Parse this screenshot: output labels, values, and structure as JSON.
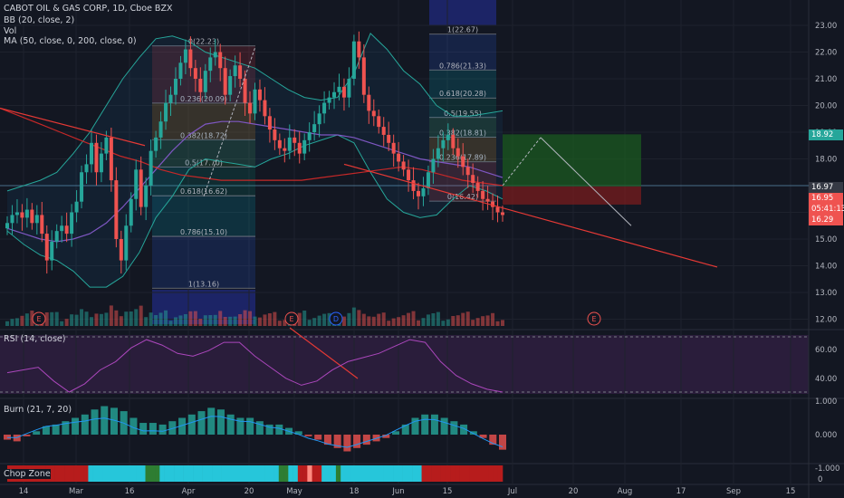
{
  "header": {
    "title": "CABOT OIL & GAS CORP, 1D, Cboe BZX",
    "indicators": [
      "BB (20, close, 2)",
      "Vol",
      "MA (50, close, 0, 200, close, 0)"
    ]
  },
  "rsi_label": "RSI (14, close)",
  "burn_label": "Burn (21, 7, 20)",
  "chop_label": "Chop Zone",
  "price_tags": [
    {
      "value": "18.92",
      "color": "#26a69a"
    },
    {
      "value": "16.97",
      "color": "#363a45"
    },
    {
      "value": "16.95",
      "color": "#ef5350"
    },
    {
      "value": "05:41:13",
      "color": "#ef5350"
    },
    {
      "value": "16.29",
      "color": "#ef5350"
    }
  ],
  "fib_left": [
    "0(22.23)",
    "0.236(20.09)",
    "0.382(18.72)",
    "0.5(17.70)",
    "0.618(16.62)",
    "0.786(15.10)",
    "1(13.16)"
  ],
  "fib_right": [
    "1(22.67)",
    "0.786(21.33)",
    "0.618(20.28)",
    "0.5(19.55)",
    "0.382(18.81)",
    "0.236(17.89)",
    "0(16.42)"
  ],
  "event_markers": [
    "E",
    "E",
    "D",
    "E"
  ],
  "chart_data": [
    {
      "type": "candlestick",
      "title": "CABOT OIL & GAS CORP, 1D, Cboe BZX",
      "y_ticks": [
        "23.00",
        "22.00",
        "21.00",
        "20.00",
        "19.00",
        "18.00",
        "17.00",
        "16.00",
        "15.00",
        "14.00",
        "13.00",
        "12.00"
      ],
      "ylim": [
        12,
        23
      ],
      "x_ticks": [
        "14",
        "Mar",
        "16",
        "Apr",
        "20",
        "May",
        "18",
        "Jun",
        "15",
        "Jul",
        "20",
        "Aug",
        "17",
        "Sep",
        "15"
      ],
      "series": [
        {
          "name": "Price",
          "close": [
            15.6,
            15.9,
            16.0,
            15.8,
            16.1,
            15.6,
            15.9,
            15.2,
            14.2,
            14.9,
            15.3,
            15.5,
            15.2,
            16.0,
            16.4,
            17.5,
            17.8,
            18.6,
            17.5,
            18.2,
            18.8,
            17.2,
            15.0,
            14.2,
            15.5,
            16.5,
            17.6,
            16.2,
            17.0,
            18.3,
            18.8,
            19.4,
            20.1,
            20.4,
            21.0,
            21.6,
            22.1,
            21.4,
            21.0,
            20.5,
            21.3,
            21.8,
            22.0,
            21.4,
            20.4,
            21.1,
            21.5,
            21.0,
            20.1,
            19.7,
            20.6,
            20.2,
            19.6,
            19.1,
            18.7,
            18.4,
            18.3,
            18.8,
            18.6,
            18.2,
            18.7,
            19.0,
            19.3,
            19.7,
            20.1,
            20.3,
            20.5,
            20.7,
            20.3,
            21.0,
            22.4,
            21.8,
            20.4,
            19.8,
            19.6,
            19.2,
            18.9,
            18.6,
            18.2,
            17.9,
            17.6,
            17.2,
            16.8,
            16.6,
            16.9,
            17.5,
            18.0,
            18.4,
            18.7,
            18.9,
            18.4,
            18.1,
            17.7,
            17.4,
            17.1,
            16.8,
            16.5,
            16.4,
            16.2,
            16.0,
            15.9
          ]
        },
        {
          "name": "BB upper",
          "values": [
            16.8,
            17.0,
            17.2,
            17.5,
            18.2,
            19.0,
            20.0,
            21.0,
            21.8,
            22.5,
            22.6,
            22.4,
            22.0,
            21.8,
            21.6,
            21.4,
            21.0,
            20.6,
            20.3,
            20.2,
            20.3,
            21.2,
            22.7,
            22.1,
            21.3,
            20.8,
            20.0,
            19.6,
            19.6,
            19.7,
            19.8
          ]
        },
        {
          "name": "BB lower",
          "values": [
            15.3,
            14.8,
            14.4,
            14.2,
            13.8,
            13.2,
            13.2,
            13.6,
            14.5,
            15.8,
            16.6,
            17.6,
            18.0,
            17.9,
            17.8,
            17.7,
            18.0,
            18.2,
            18.5,
            18.7,
            18.9,
            18.6,
            17.5,
            16.5,
            16.0,
            15.8,
            15.9,
            16.5,
            17.0,
            16.8,
            16.5
          ]
        },
        {
          "name": "MA 50",
          "values": [
            15.4,
            15.2,
            15.0,
            14.9,
            15.0,
            15.2,
            15.6,
            16.2,
            16.9,
            17.6,
            18.3,
            18.9,
            19.3,
            19.4,
            19.4,
            19.3,
            19.2,
            19.1,
            19.0,
            18.9,
            18.9,
            18.8,
            18.6,
            18.4,
            18.2,
            18.0,
            17.9,
            17.8,
            17.7,
            17.5,
            17.3
          ]
        },
        {
          "name": "MA 200",
          "values": [
            19.9,
            19.6,
            19.3,
            19.0,
            18.7,
            18.4,
            18.1,
            17.9,
            17.6,
            17.4,
            17.3,
            17.2,
            17.2,
            17.2,
            17.2,
            17.2,
            17.3,
            17.4,
            17.5,
            17.6,
            17.7,
            17.6,
            17.4,
            17.2,
            17.1,
            17.0
          ]
        }
      ]
    },
    {
      "type": "line",
      "title": "RSI (14, close)",
      "y_ticks": [
        "60.00",
        "40.00"
      ],
      "ylim": [
        23,
        80
      ],
      "series": [
        {
          "name": "RSI",
          "values": [
            44,
            46,
            48,
            38,
            30,
            36,
            46,
            52,
            62,
            68,
            64,
            58,
            56,
            60,
            66,
            66,
            56,
            48,
            40,
            35,
            38,
            46,
            52,
            55,
            58,
            63,
            68,
            66,
            52,
            42,
            36,
            32,
            30
          ]
        }
      ]
    },
    {
      "type": "bar",
      "title": "Burn (21, 7, 20)",
      "y_ticks": [
        "1.000",
        "0.000",
        "-1.000"
      ],
      "ylim": [
        -1.1,
        1.1
      ],
      "series": [
        {
          "name": "Burn",
          "values": [
            -0.15,
            -0.2,
            -0.05,
            0.1,
            0.25,
            0.3,
            0.4,
            0.5,
            0.6,
            0.75,
            0.85,
            0.8,
            0.7,
            0.5,
            0.35,
            0.35,
            0.3,
            0.4,
            0.5,
            0.6,
            0.7,
            0.8,
            0.75,
            0.6,
            0.5,
            0.5,
            0.4,
            0.3,
            0.3,
            0.2,
            0.1,
            -0.05,
            -0.15,
            -0.3,
            -0.4,
            -0.5,
            -0.4,
            -0.3,
            -0.2,
            -0.1,
            0.1,
            0.3,
            0.5,
            0.6,
            0.6,
            0.5,
            0.4,
            0.3,
            0.1,
            -0.1,
            -0.3,
            -0.45
          ]
        }
      ]
    },
    {
      "type": "heatmap",
      "title": "Chop Zone",
      "y_ticks": [
        "0"
      ],
      "series": [
        {
          "name": "Chop Zone",
          "values": [
            "r",
            "r",
            "r",
            "r",
            "r",
            "r",
            "r",
            "r",
            "r",
            "r",
            "r",
            "r",
            "r",
            "r",
            "r",
            "r",
            "r",
            "c",
            "c",
            "c",
            "c",
            "c",
            "c",
            "c",
            "c",
            "c",
            "c",
            "c",
            "c",
            "g",
            "g",
            "g",
            "c",
            "c",
            "c",
            "c",
            "c",
            "c",
            "c",
            "c",
            "c",
            "c",
            "c",
            "c",
            "c",
            "c",
            "c",
            "c",
            "c",
            "c",
            "c",
            "c",
            "c",
            "c",
            "c",
            "c",
            "c",
            "g",
            "g",
            "c",
            "c",
            "r",
            "r",
            "p",
            "r",
            "r",
            "c",
            "c",
            "c",
            "g",
            "c",
            "c",
            "c",
            "c",
            "c",
            "c",
            "c",
            "c",
            "c",
            "c",
            "c",
            "c",
            "c",
            "c",
            "c",
            "c",
            "c",
            "r",
            "r",
            "r",
            "r",
            "r",
            "r",
            "r",
            "r",
            "r",
            "r",
            "r",
            "r",
            "r",
            "r",
            "r",
            "r",
            "r"
          ]
        }
      ]
    }
  ]
}
